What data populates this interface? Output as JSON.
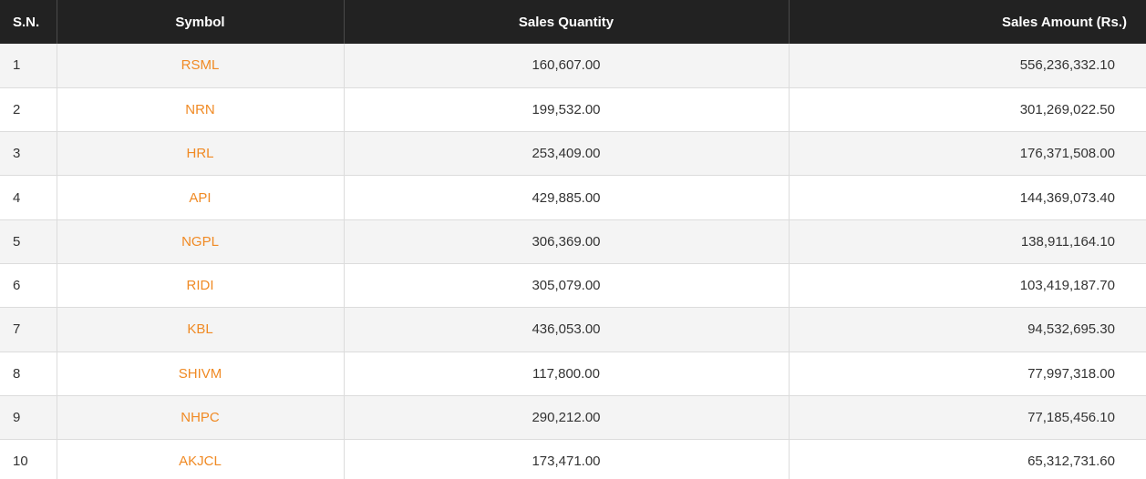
{
  "table": {
    "headers": {
      "sn": "S.N.",
      "symbol": "Symbol",
      "quantity": "Sales Quantity",
      "amount": "Sales Amount (Rs.)"
    },
    "colors": {
      "header_bg": "#222222",
      "symbol_link": "#f08a24"
    },
    "rows": [
      {
        "sn": "1",
        "symbol": "RSML",
        "quantity": "160,607.00",
        "amount": "556,236,332.10"
      },
      {
        "sn": "2",
        "symbol": "NRN",
        "quantity": "199,532.00",
        "amount": "301,269,022.50"
      },
      {
        "sn": "3",
        "symbol": "HRL",
        "quantity": "253,409.00",
        "amount": "176,371,508.00"
      },
      {
        "sn": "4",
        "symbol": "API",
        "quantity": "429,885.00",
        "amount": "144,369,073.40"
      },
      {
        "sn": "5",
        "symbol": "NGPL",
        "quantity": "306,369.00",
        "amount": "138,911,164.10"
      },
      {
        "sn": "6",
        "symbol": "RIDI",
        "quantity": "305,079.00",
        "amount": "103,419,187.70"
      },
      {
        "sn": "7",
        "symbol": "KBL",
        "quantity": "436,053.00",
        "amount": "94,532,695.30"
      },
      {
        "sn": "8",
        "symbol": "SHIVM",
        "quantity": "117,800.00",
        "amount": "77,997,318.00"
      },
      {
        "sn": "9",
        "symbol": "NHPC",
        "quantity": "290,212.00",
        "amount": "77,185,456.10"
      },
      {
        "sn": "10",
        "symbol": "AKJCL",
        "quantity": "173,471.00",
        "amount": "65,312,731.60"
      }
    ]
  }
}
